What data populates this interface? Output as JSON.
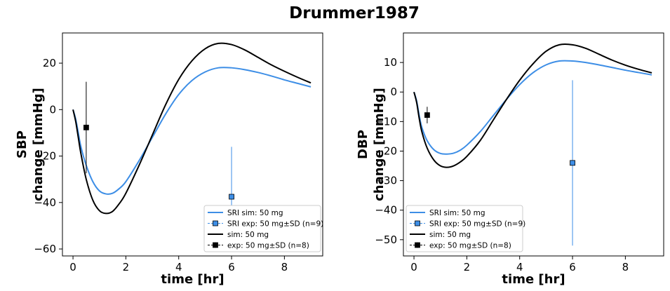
{
  "figure_title": "Drummer1987",
  "colors": {
    "sri": "#3d8ee6",
    "ref": "#000000"
  },
  "chart_data": [
    {
      "type": "line",
      "ylabel_lines": [
        "SBP",
        "change [mmHg]"
      ],
      "xlabel": "time [hr]",
      "xlim": [
        -0.4,
        9.45
      ],
      "ylim": [
        -63,
        33
      ],
      "xticks": [
        0,
        2,
        4,
        6,
        8
      ],
      "yticks": [
        -60,
        -40,
        -20,
        0,
        20
      ],
      "grid": false,
      "legend_position": "lower-right",
      "series": [
        {
          "name": "SRI sim: 50 mg",
          "kind": "line",
          "color": "#3d8ee6",
          "x": [
            0,
            0.1,
            0.2,
            0.3,
            0.5,
            0.75,
            1,
            1.25,
            1.5,
            1.75,
            2,
            2.5,
            3,
            3.5,
            4,
            4.5,
            5,
            5.5,
            6,
            6.5,
            7,
            7.5,
            8,
            8.5,
            9
          ],
          "y": [
            0,
            -4,
            -10,
            -16,
            -24,
            -31,
            -35,
            -36.3,
            -36,
            -34,
            -31,
            -22,
            -12,
            -2,
            6.5,
            12.5,
            16.2,
            18,
            18,
            17.2,
            16,
            14.5,
            12.8,
            11.3,
            9.8
          ]
        },
        {
          "name": "SRI exp: 50 mg±SD (n=9)",
          "kind": "errorbar",
          "marker": "square",
          "color": "#3d8ee6",
          "x": [
            6
          ],
          "y": [
            -37.5
          ],
          "yerr": [
            21.5
          ]
        },
        {
          "name": "sim: 50 mg",
          "kind": "line",
          "color": "#000000",
          "x": [
            0,
            0.1,
            0.2,
            0.3,
            0.5,
            0.75,
            1,
            1.25,
            1.5,
            1.75,
            2,
            2.5,
            3,
            3.5,
            4,
            4.5,
            5,
            5.5,
            6,
            6.5,
            7,
            7.5,
            8,
            8.5,
            9
          ],
          "y": [
            0,
            -5,
            -12,
            -19,
            -30,
            -39,
            -43.5,
            -44.7,
            -43.8,
            -40.5,
            -36,
            -24,
            -11,
            2,
            13,
            21,
            26.2,
            28.5,
            28,
            25.7,
            22.5,
            19.3,
            16.5,
            13.9,
            11.5
          ]
        },
        {
          "name": "exp: 50 mg±SD (n=8)",
          "kind": "errorbar",
          "marker": "square",
          "color": "#000000",
          "x": [
            0.5
          ],
          "y": [
            -7.7
          ],
          "yerr": [
            19.7
          ]
        }
      ]
    },
    {
      "type": "line",
      "ylabel_lines": [
        "DBP",
        "change [mmHg]"
      ],
      "xlabel": "time [hr]",
      "xlim": [
        -0.4,
        9.45
      ],
      "ylim": [
        -55.5,
        20
      ],
      "xticks": [
        0,
        2,
        4,
        6,
        8
      ],
      "yticks": [
        -50,
        -40,
        -30,
        -20,
        -10,
        0,
        10
      ],
      "grid": false,
      "legend_position": "lower-left",
      "series": [
        {
          "name": "SRI sim: 50 mg",
          "kind": "line",
          "color": "#3d8ee6",
          "x": [
            0,
            0.1,
            0.2,
            0.3,
            0.5,
            0.75,
            1,
            1.25,
            1.5,
            1.75,
            2,
            2.5,
            3,
            3.5,
            4,
            4.5,
            5,
            5.5,
            6,
            6.5,
            7,
            7.5,
            8,
            8.5,
            9
          ],
          "y": [
            0,
            -3,
            -8,
            -12,
            -16.5,
            -19.5,
            -20.8,
            -21,
            -20.7,
            -19.7,
            -18,
            -13.5,
            -8,
            -2.5,
            2.5,
            6.5,
            9.2,
            10.5,
            10.5,
            10,
            9.2,
            8.3,
            7.4,
            6.6,
            5.8
          ]
        },
        {
          "name": "SRI exp: 50 mg±SD (n=9)",
          "kind": "errorbar",
          "marker": "square",
          "color": "#3d8ee6",
          "x": [
            6
          ],
          "y": [
            -24
          ],
          "yerr": [
            28
          ]
        },
        {
          "name": "sim: 50 mg",
          "kind": "line",
          "color": "#000000",
          "x": [
            0,
            0.1,
            0.2,
            0.3,
            0.5,
            0.75,
            1,
            1.25,
            1.5,
            1.75,
            2,
            2.5,
            3,
            3.5,
            4,
            4.5,
            5,
            5.5,
            6,
            6.5,
            7,
            7.5,
            8,
            8.5,
            9
          ],
          "y": [
            0,
            -3.5,
            -9,
            -13.5,
            -19,
            -23,
            -25,
            -25.5,
            -25,
            -23.7,
            -21.8,
            -16.5,
            -9.5,
            -2.5,
            4,
            9.5,
            13.8,
            16,
            16,
            14.8,
            12.8,
            10.8,
            9.1,
            7.7,
            6.5
          ]
        },
        {
          "name": "exp: 50 mg±SD (n=8)",
          "kind": "errorbar",
          "marker": "square",
          "color": "#000000",
          "x": [
            0.5
          ],
          "y": [
            -7.8
          ],
          "yerr": [
            2.8
          ]
        }
      ]
    }
  ]
}
